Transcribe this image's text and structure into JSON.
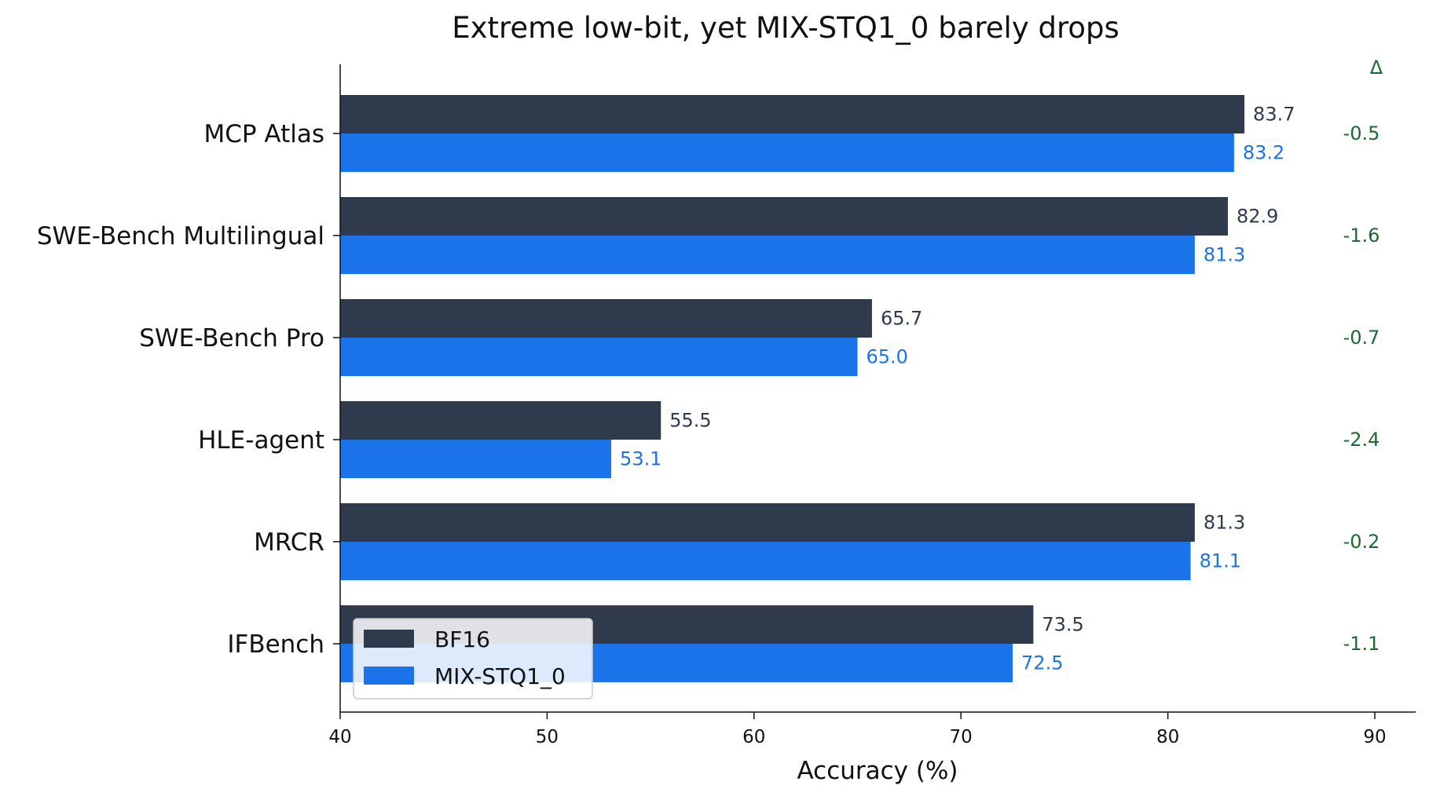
{
  "chart_data": {
    "type": "bar",
    "orientation": "horizontal",
    "title": "Extreme low-bit, yet MIX-STQ1_0 barely drops",
    "xlabel": "Accuracy (%)",
    "ylabel": "",
    "xlim": [
      40,
      90
    ],
    "xticks": [
      "40",
      "50",
      "60",
      "70",
      "80",
      "90"
    ],
    "grid": false,
    "legend_position": "lower-left",
    "categories": [
      "MCP Atlas",
      "SWE-Bench Multilingual",
      "SWE-Bench Pro",
      "HLE-agent",
      "MRCR",
      "IFBench"
    ],
    "series": [
      {
        "name": "BF16",
        "color": "#2f3a4d",
        "values": [
          83.7,
          82.9,
          65.7,
          55.5,
          81.3,
          73.5
        ],
        "labels": [
          "83.7",
          "82.9",
          "65.7",
          "55.5",
          "81.3",
          "73.5"
        ]
      },
      {
        "name": "MIX-STQ1_0",
        "color": "#1a73e8",
        "values": [
          83.2,
          81.3,
          65.0,
          53.1,
          81.1,
          72.5
        ],
        "labels": [
          "83.2",
          "81.3",
          "65.0",
          "53.1",
          "81.1",
          "72.5"
        ]
      }
    ],
    "delta_header": "Δ",
    "delta_color": "#1b6b2f",
    "deltas": [
      "-0.5",
      "-1.6",
      "-0.7",
      "-2.4",
      "-0.2",
      "-1.1"
    ]
  }
}
